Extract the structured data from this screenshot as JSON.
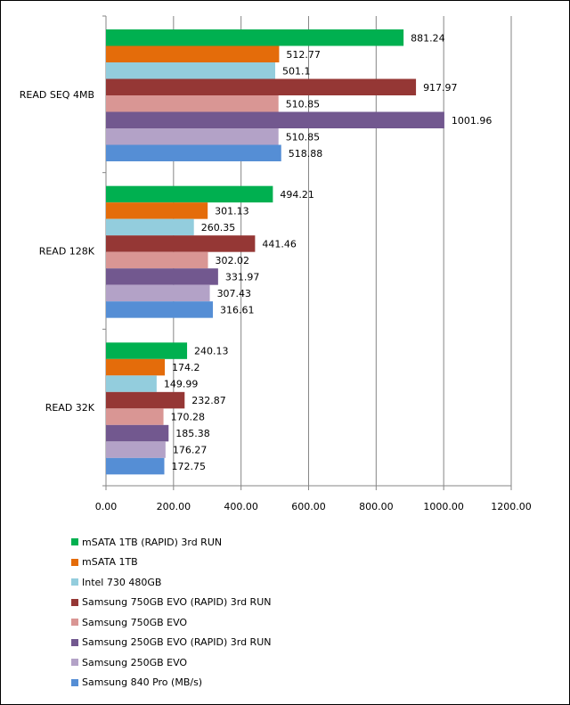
{
  "chart_data": {
    "type": "bar",
    "orientation": "horizontal",
    "title": "",
    "xlabel": "",
    "ylabel": "",
    "xlim": [
      0,
      1200
    ],
    "x_ticks": [
      "0.00",
      "200.00",
      "400.00",
      "600.00",
      "800.00",
      "1000.00",
      "1200.00"
    ],
    "x_tick_values": [
      0,
      200,
      400,
      600,
      800,
      1000,
      1200
    ],
    "grid": "vertical major gridlines",
    "legend_position": "bottom",
    "categories": [
      "READ SEQ 4MB",
      "READ 128K",
      "READ 32K"
    ],
    "series": [
      {
        "name": "mSATA 1TB (RAPID) 3rd RUN",
        "color": "#00B050",
        "values": [
          881.24,
          494.21,
          240.13
        ],
        "labels": [
          "881.24",
          "494.21",
          "240.13"
        ]
      },
      {
        "name": "mSATA 1TB",
        "color": "#E46C0A",
        "values": [
          512.77,
          301.13,
          174.2
        ],
        "labels": [
          "512.77",
          "301.13",
          "174.2"
        ]
      },
      {
        "name": "Intel 730 480GB",
        "color": "#93CDDD",
        "values": [
          501.1,
          260.35,
          149.99
        ],
        "labels": [
          "501.1",
          "260.35",
          "149.99"
        ]
      },
      {
        "name": "Samsung 750GB EVO (RAPID) 3rd RUN",
        "color": "#953735",
        "values": [
          917.97,
          441.46,
          232.87
        ],
        "labels": [
          "917.97",
          "441.46",
          "232.87"
        ]
      },
      {
        "name": "Samsung 750GB EVO",
        "color": "#D99694",
        "values": [
          510.85,
          302.02,
          170.28
        ],
        "labels": [
          "510.85",
          "302.02",
          "170.28"
        ]
      },
      {
        "name": "Samsung 250GB EVO (RAPID) 3rd RUN",
        "color": "#72588F",
        "values": [
          1001.96,
          331.97,
          185.38
        ],
        "labels": [
          "1001.96",
          "331.97",
          "185.38"
        ]
      },
      {
        "name": "Samsung 250GB EVO",
        "color": "#B3A2C7",
        "values": [
          510.85,
          307.43,
          176.27
        ],
        "labels": [
          "510.85",
          "307.43",
          "176.27"
        ]
      },
      {
        "name": "Samsung 840 Pro (MB/s)",
        "color": "#558ED5",
        "values": [
          518.88,
          316.61,
          172.75
        ],
        "labels": [
          "518.88",
          "316.61",
          "172.75"
        ]
      }
    ]
  }
}
